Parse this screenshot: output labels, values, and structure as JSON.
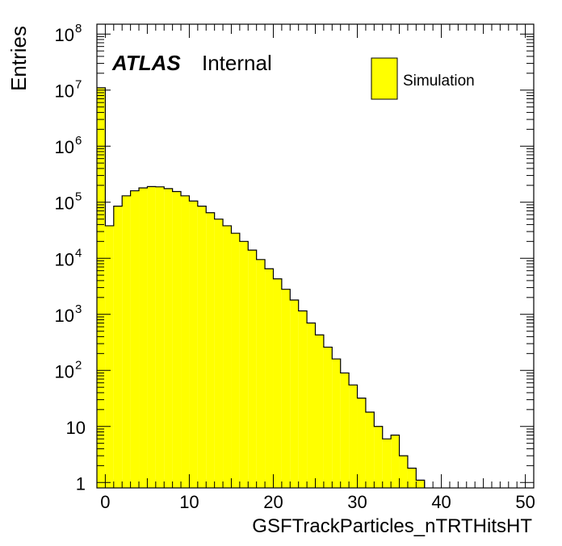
{
  "chart_data": {
    "type": "bar",
    "title": "",
    "xlabel": "GSFTrackParticles_nTRTHitsHT",
    "ylabel": "Entries",
    "xlim": [
      -1,
      51
    ],
    "ylim": [
      0.8,
      150000000
    ],
    "y_scale": "log",
    "bin_width": 1,
    "x_ticks": [
      0,
      10,
      20,
      30,
      40,
      50
    ],
    "x_tick_labels": [
      "0",
      "10",
      "20",
      "30",
      "40",
      "50"
    ],
    "y_tick_labels": [
      {
        "value": 1,
        "base": "1",
        "exp": ""
      },
      {
        "value": 10,
        "base": "10",
        "exp": ""
      },
      {
        "value": 100,
        "base": "10",
        "exp": "2"
      },
      {
        "value": 1000,
        "base": "10",
        "exp": "3"
      },
      {
        "value": 10000,
        "base": "10",
        "exp": "4"
      },
      {
        "value": 100000,
        "base": "10",
        "exp": "5"
      },
      {
        "value": 1000000,
        "base": "10",
        "exp": "6"
      },
      {
        "value": 10000000,
        "base": "10",
        "exp": "7"
      },
      {
        "value": 100000000,
        "base": "10",
        "exp": "8"
      }
    ],
    "fill_color": "#ffff00",
    "grid": false,
    "legend_position": "top-right",
    "series": [
      {
        "name": "Simulation",
        "bin_edges_start": -1,
        "values": [
          11000000,
          38000,
          85000,
          130000,
          160000,
          180000,
          190000,
          188000,
          175000,
          155000,
          130000,
          105000,
          85000,
          65000,
          50000,
          38000,
          28000,
          20000,
          14000,
          9500,
          6500,
          4300,
          2800,
          1800,
          1150,
          700,
          430,
          260,
          160,
          90,
          55,
          32,
          18,
          10,
          6,
          7,
          3,
          1.8,
          1.1
        ]
      }
    ],
    "atlas_label": "ATLAS",
    "atlas_status": "Internal"
  }
}
